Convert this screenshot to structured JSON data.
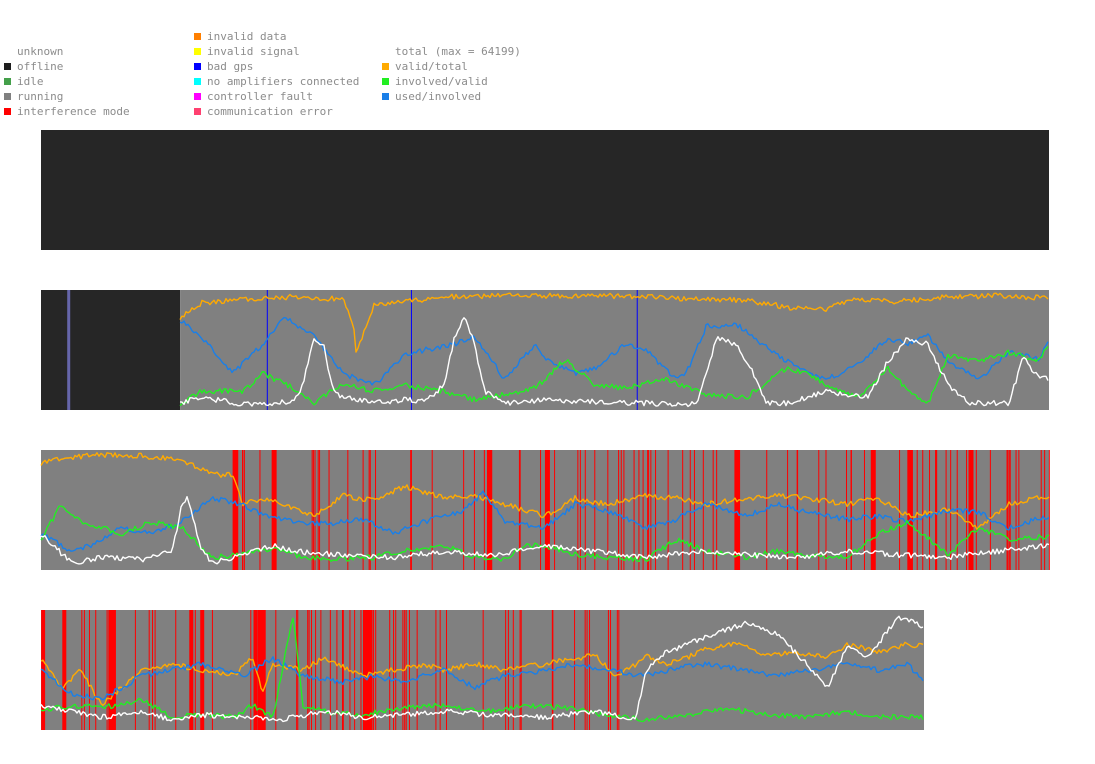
{
  "legend": {
    "status": [
      {
        "label": "unknown",
        "color": null
      },
      {
        "label": "offline",
        "color": "#1e1e1e"
      },
      {
        "label": "idle",
        "color": "#44a04a"
      },
      {
        "label": "running",
        "color": "#808080"
      },
      {
        "label": "interference mode",
        "color": "#ff0000"
      }
    ],
    "errors": [
      {
        "label": "invalid data",
        "color": "#ff7f00"
      },
      {
        "label": "invalid signal",
        "color": "#ffff00"
      },
      {
        "label": "bad gps",
        "color": "#0000ff"
      },
      {
        "label": "no amplifiers connected",
        "color": "#00ffff"
      },
      {
        "label": "controller fault",
        "color": "#ff00ff"
      },
      {
        "label": "communication error",
        "color": "#ff4070"
      }
    ],
    "ratios": [
      {
        "label": "total (max = 64199)",
        "color": null
      },
      {
        "label": "valid/total",
        "color": "#ffaa00"
      },
      {
        "label": "involved/valid",
        "color": "#22ee22"
      },
      {
        "label": "used/involved",
        "color": "#1a7fe8"
      }
    ]
  },
  "colors": {
    "offline": "#262626",
    "running": "#808080",
    "interference": "#ff0000",
    "bad_gps": "#0000ff",
    "idle_marker": "#6666aa",
    "total": "#ffffff",
    "valid_total": "#ffaa00",
    "involved_valid": "#22ee22",
    "used_involved": "#1a7fe8"
  },
  "chart_data": [
    {
      "type": "area",
      "station": 1,
      "status": "offline",
      "series": []
    },
    {
      "type": "line",
      "station": 2,
      "segments": [
        {
          "from": 0,
          "to": 0.138,
          "status": "offline"
        },
        {
          "from": 0.138,
          "to": 1.0,
          "status": "running"
        }
      ],
      "markers": [
        {
          "at": 0.026,
          "type": "idle"
        },
        {
          "at": 0.224,
          "type": "bad gps"
        },
        {
          "at": 0.367,
          "type": "bad gps"
        },
        {
          "at": 0.591,
          "type": "bad gps"
        }
      ],
      "ylim": [
        0,
        1
      ],
      "series": [
        {
          "key": "valid_total",
          "x": [
            0.138,
            0.16,
            0.2,
            0.25,
            0.3,
            0.31,
            0.312,
            0.33,
            0.4,
            0.45,
            0.5,
            0.55,
            0.6,
            0.65,
            0.7,
            0.75,
            0.78,
            0.8,
            0.85,
            0.9,
            0.95,
            1.0
          ],
          "values": [
            0.78,
            0.9,
            0.93,
            0.95,
            0.93,
            0.72,
            0.45,
            0.88,
            0.95,
            0.96,
            0.96,
            0.96,
            0.95,
            0.93,
            0.92,
            0.85,
            0.84,
            0.92,
            0.91,
            0.95,
            0.96,
            0.94
          ]
        },
        {
          "key": "used_involved",
          "x": [
            0.138,
            0.16,
            0.19,
            0.22,
            0.24,
            0.27,
            0.3,
            0.33,
            0.36,
            0.38,
            0.41,
            0.43,
            0.46,
            0.49,
            0.5,
            0.53,
            0.55,
            0.58,
            0.6,
            0.63,
            0.64,
            0.66,
            0.69,
            0.72,
            0.75,
            0.78,
            0.81,
            0.84,
            0.86,
            0.88,
            0.9,
            0.93,
            0.96,
            0.99,
            1.0
          ],
          "values": [
            0.75,
            0.6,
            0.3,
            0.55,
            0.78,
            0.62,
            0.3,
            0.2,
            0.45,
            0.5,
            0.55,
            0.62,
            0.25,
            0.55,
            0.42,
            0.3,
            0.35,
            0.55,
            0.5,
            0.25,
            0.3,
            0.7,
            0.72,
            0.52,
            0.35,
            0.25,
            0.38,
            0.6,
            0.55,
            0.62,
            0.4,
            0.25,
            0.48,
            0.42,
            0.6
          ]
        },
        {
          "key": "involved_valid",
          "x": [
            0.138,
            0.16,
            0.2,
            0.22,
            0.25,
            0.27,
            0.3,
            0.33,
            0.36,
            0.4,
            0.43,
            0.46,
            0.49,
            0.5,
            0.52,
            0.55,
            0.58,
            0.62,
            0.66,
            0.7,
            0.74,
            0.76,
            0.78,
            0.81,
            0.84,
            0.86,
            0.88,
            0.9,
            0.93,
            0.96,
            0.99,
            1.0
          ],
          "values": [
            0.05,
            0.15,
            0.15,
            0.3,
            0.18,
            0.05,
            0.22,
            0.15,
            0.2,
            0.15,
            0.08,
            0.12,
            0.18,
            0.25,
            0.42,
            0.2,
            0.18,
            0.25,
            0.12,
            0.1,
            0.35,
            0.3,
            0.2,
            0.1,
            0.35,
            0.15,
            0.05,
            0.45,
            0.4,
            0.48,
            0.42,
            0.55
          ]
        },
        {
          "key": "total",
          "x": [
            0.138,
            0.16,
            0.2,
            0.25,
            0.26,
            0.27,
            0.28,
            0.29,
            0.3,
            0.33,
            0.36,
            0.38,
            0.4,
            0.41,
            0.42,
            0.43,
            0.44,
            0.46,
            0.5,
            0.55,
            0.6,
            0.65,
            0.66,
            0.67,
            0.69,
            0.71,
            0.72,
            0.74,
            0.78,
            0.82,
            0.84,
            0.86,
            0.88,
            0.9,
            0.92,
            0.96,
            0.975,
            0.985,
            1.0
          ],
          "values": [
            0.05,
            0.1,
            0.04,
            0.06,
            0.2,
            0.6,
            0.55,
            0.15,
            0.1,
            0.05,
            0.08,
            0.06,
            0.2,
            0.6,
            0.8,
            0.55,
            0.15,
            0.05,
            0.08,
            0.06,
            0.05,
            0.04,
            0.3,
            0.6,
            0.55,
            0.25,
            0.05,
            0.05,
            0.15,
            0.1,
            0.4,
            0.6,
            0.55,
            0.2,
            0.05,
            0.05,
            0.45,
            0.3,
            0.25
          ]
        }
      ]
    },
    {
      "type": "line",
      "station": 3,
      "segments": [
        {
          "from": 0,
          "to": 1.0,
          "status": "running"
        }
      ],
      "interference_density": "frequent after 0.19",
      "ylim": [
        0,
        1
      ],
      "series": [
        {
          "key": "valid_total",
          "x": [
            0,
            0.02,
            0.05,
            0.1,
            0.14,
            0.17,
            0.19,
            0.2,
            0.22,
            0.25,
            0.27,
            0.3,
            0.33,
            0.36,
            0.4,
            0.43,
            0.46,
            0.5,
            0.53,
            0.56,
            0.6,
            0.63,
            0.66,
            0.7,
            0.73,
            0.76,
            0.8,
            0.83,
            0.86,
            0.9,
            0.93,
            0.96,
            1.0
          ],
          "values": [
            0.9,
            0.93,
            0.97,
            0.96,
            0.92,
            0.8,
            0.8,
            0.55,
            0.6,
            0.52,
            0.45,
            0.62,
            0.58,
            0.7,
            0.6,
            0.62,
            0.55,
            0.45,
            0.6,
            0.55,
            0.62,
            0.6,
            0.55,
            0.6,
            0.62,
            0.6,
            0.55,
            0.6,
            0.45,
            0.5,
            0.35,
            0.55,
            0.62
          ]
        },
        {
          "key": "used_involved",
          "x": [
            0,
            0.03,
            0.05,
            0.08,
            0.11,
            0.14,
            0.17,
            0.2,
            0.22,
            0.25,
            0.28,
            0.32,
            0.35,
            0.38,
            0.42,
            0.44,
            0.46,
            0.5,
            0.53,
            0.56,
            0.6,
            0.63,
            0.66,
            0.7,
            0.73,
            0.76,
            0.8,
            0.83,
            0.86,
            0.9,
            0.93,
            0.96,
            1.0
          ],
          "values": [
            0.3,
            0.15,
            0.2,
            0.35,
            0.3,
            0.4,
            0.6,
            0.55,
            0.45,
            0.4,
            0.38,
            0.42,
            0.3,
            0.4,
            0.5,
            0.65,
            0.4,
            0.35,
            0.55,
            0.5,
            0.35,
            0.42,
            0.55,
            0.45,
            0.55,
            0.48,
            0.42,
            0.45,
            0.4,
            0.5,
            0.48,
            0.35,
            0.45
          ]
        },
        {
          "key": "involved_valid",
          "x": [
            0,
            0.02,
            0.04,
            0.08,
            0.11,
            0.14,
            0.17,
            0.2,
            0.23,
            0.26,
            0.3,
            0.33,
            0.36,
            0.4,
            0.43,
            0.46,
            0.48,
            0.5,
            0.53,
            0.56,
            0.6,
            0.63,
            0.66,
            0.7,
            0.73,
            0.76,
            0.8,
            0.83,
            0.86,
            0.9,
            0.93,
            0.96,
            1.0
          ],
          "values": [
            0.25,
            0.55,
            0.4,
            0.3,
            0.4,
            0.35,
            0.1,
            0.12,
            0.18,
            0.1,
            0.08,
            0.1,
            0.15,
            0.2,
            0.1,
            0.08,
            0.2,
            0.2,
            0.12,
            0.1,
            0.08,
            0.25,
            0.15,
            0.1,
            0.15,
            0.12,
            0.1,
            0.3,
            0.4,
            0.12,
            0.35,
            0.25,
            0.28
          ]
        },
        {
          "key": "total",
          "x": [
            0,
            0.03,
            0.06,
            0.1,
            0.13,
            0.14,
            0.145,
            0.15,
            0.16,
            0.17,
            0.2,
            0.23,
            0.25,
            0.3,
            0.35,
            0.4,
            0.45,
            0.5,
            0.55,
            0.6,
            0.65,
            0.7,
            0.75,
            0.8,
            0.85,
            0.9,
            0.95,
            1.0
          ],
          "values": [
            0.3,
            0.05,
            0.1,
            0.08,
            0.15,
            0.55,
            0.62,
            0.45,
            0.15,
            0.05,
            0.12,
            0.2,
            0.15,
            0.12,
            0.1,
            0.15,
            0.12,
            0.2,
            0.15,
            0.1,
            0.15,
            0.12,
            0.1,
            0.15,
            0.12,
            0.1,
            0.15,
            0.2
          ]
        }
      ]
    },
    {
      "type": "line",
      "station": 4,
      "segments": [
        {
          "from": 0,
          "to": 0.876,
          "status": "running"
        }
      ],
      "interference_density": "frequent before 0.58",
      "ylim": [
        0,
        1
      ],
      "series": [
        {
          "key": "valid_total",
          "x": [
            0,
            0.02,
            0.04,
            0.06,
            0.1,
            0.13,
            0.16,
            0.19,
            0.21,
            0.22,
            0.23,
            0.26,
            0.28,
            0.32,
            0.35,
            0.38,
            0.4,
            0.43,
            0.46,
            0.5,
            0.53,
            0.55,
            0.57,
            0.59,
            0.6,
            0.62,
            0.64,
            0.66,
            0.69,
            0.72,
            0.75,
            0.78,
            0.8,
            0.83,
            0.86,
            0.876
          ],
          "values": [
            0.6,
            0.35,
            0.5,
            0.2,
            0.5,
            0.55,
            0.5,
            0.45,
            0.6,
            0.3,
            0.55,
            0.5,
            0.6,
            0.45,
            0.5,
            0.55,
            0.5,
            0.55,
            0.5,
            0.55,
            0.6,
            0.62,
            0.45,
            0.55,
            0.62,
            0.55,
            0.6,
            0.68,
            0.72,
            0.62,
            0.65,
            0.6,
            0.72,
            0.65,
            0.72,
            0.7
          ]
        },
        {
          "key": "used_involved",
          "x": [
            0,
            0.03,
            0.06,
            0.1,
            0.13,
            0.16,
            0.2,
            0.23,
            0.26,
            0.3,
            0.33,
            0.36,
            0.4,
            0.43,
            0.46,
            0.5,
            0.53,
            0.56,
            0.6,
            0.63,
            0.66,
            0.7,
            0.73,
            0.76,
            0.8,
            0.83,
            0.86,
            0.876
          ],
          "values": [
            0.5,
            0.3,
            0.25,
            0.45,
            0.5,
            0.55,
            0.45,
            0.6,
            0.45,
            0.4,
            0.45,
            0.4,
            0.5,
            0.35,
            0.45,
            0.5,
            0.55,
            0.5,
            0.45,
            0.52,
            0.55,
            0.5,
            0.45,
            0.5,
            0.55,
            0.5,
            0.55,
            0.4
          ]
        },
        {
          "key": "involved_valid",
          "x": [
            0,
            0.03,
            0.06,
            0.1,
            0.13,
            0.16,
            0.19,
            0.21,
            0.23,
            0.25,
            0.26,
            0.28,
            0.32,
            0.36,
            0.4,
            0.44,
            0.48,
            0.52,
            0.56,
            0.6,
            0.64,
            0.68,
            0.72,
            0.76,
            0.8,
            0.84,
            0.876
          ],
          "values": [
            0.15,
            0.2,
            0.18,
            0.25,
            0.1,
            0.12,
            0.1,
            0.2,
            0.1,
            0.95,
            0.2,
            0.15,
            0.12,
            0.18,
            0.2,
            0.15,
            0.2,
            0.18,
            0.12,
            0.08,
            0.12,
            0.18,
            0.12,
            0.1,
            0.15,
            0.1,
            0.1
          ]
        },
        {
          "key": "total",
          "x": [
            0,
            0.03,
            0.06,
            0.1,
            0.13,
            0.16,
            0.2,
            0.24,
            0.28,
            0.32,
            0.36,
            0.4,
            0.45,
            0.5,
            0.55,
            0.59,
            0.6,
            0.62,
            0.65,
            0.7,
            0.73,
            0.76,
            0.78,
            0.8,
            0.82,
            0.85,
            0.87,
            0.876
          ],
          "values": [
            0.2,
            0.15,
            0.1,
            0.15,
            0.08,
            0.12,
            0.1,
            0.08,
            0.15,
            0.1,
            0.12,
            0.15,
            0.12,
            0.1,
            0.15,
            0.08,
            0.5,
            0.65,
            0.75,
            0.9,
            0.8,
            0.55,
            0.35,
            0.7,
            0.6,
            0.95,
            0.9,
            0.85
          ]
        }
      ]
    }
  ]
}
